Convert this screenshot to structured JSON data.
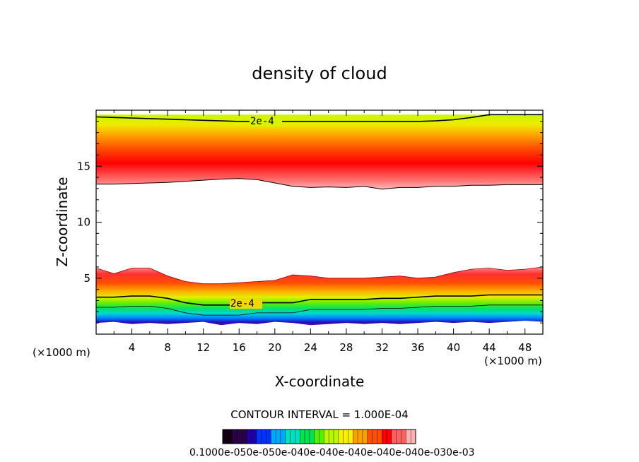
{
  "chart_data": {
    "type": "heatmap",
    "title": "density of cloud",
    "xlabel": "X-coordinate",
    "ylabel": "Z-coordinate",
    "x_unit": "(×1000 m)",
    "z_unit": "(×1000 m)",
    "xlim": [
      0,
      50
    ],
    "ylim": [
      0,
      20
    ],
    "x_ticks": [
      4,
      8,
      12,
      16,
      20,
      24,
      28,
      32,
      36,
      40,
      44,
      48
    ],
    "y_ticks": [
      5,
      10,
      15
    ],
    "contour_interval_text": "CONTOUR INTERVAL = 1.000E-04",
    "contour_label": "2e-4",
    "colorbar_labels_text": "0.1000e-050e-050e-040e-040e-040e-040e-040e-030e-03",
    "colorbar_colors": [
      "#120012",
      "#2a0048",
      "#1d00a8",
      "#0032ff",
      "#00a8ff",
      "#00e0c0",
      "#00e050",
      "#50f000",
      "#b8f800",
      "#f8f000",
      "#ffa000",
      "#ff5000",
      "#ff0000",
      "#ff6060",
      "#ffb0b0"
    ],
    "upper_layer": {
      "description_values": "density band",
      "x": [
        0,
        2,
        4,
        6,
        8,
        10,
        12,
        14,
        16,
        18,
        20,
        22,
        24,
        26,
        28,
        30,
        32,
        34,
        36,
        38,
        40,
        42,
        44,
        46,
        48,
        50
      ],
      "base_z": [
        13.4,
        13.4,
        13.45,
        13.5,
        13.55,
        13.65,
        13.75,
        13.85,
        13.9,
        13.8,
        13.5,
        13.2,
        13.1,
        13.15,
        13.1,
        13.2,
        12.95,
        13.1,
        13.1,
        13.2,
        13.2,
        13.3,
        13.3,
        13.35,
        13.35,
        13.35
      ],
      "top_z": 19.6,
      "contour_2e4_z": [
        19.4,
        19.35,
        19.3,
        19.25,
        19.2,
        19.15,
        19.1,
        19.05,
        19.0,
        19.0,
        19.0,
        19.0,
        19.0,
        19.0,
        19.0,
        19.0,
        19.0,
        19.0,
        19.0,
        19.05,
        19.15,
        19.35,
        19.6,
        19.6,
        19.6,
        19.6
      ]
    },
    "lower_layer": {
      "x": [
        0,
        2,
        4,
        6,
        8,
        10,
        12,
        14,
        16,
        18,
        20,
        22,
        24,
        26,
        28,
        30,
        32,
        34,
        36,
        38,
        40,
        42,
        44,
        46,
        48,
        50
      ],
      "top_z": [
        5.9,
        5.4,
        5.9,
        5.9,
        5.2,
        4.7,
        4.5,
        4.5,
        4.6,
        4.7,
        4.8,
        5.3,
        5.2,
        5.0,
        5.0,
        5.0,
        5.1,
        5.2,
        5.0,
        5.1,
        5.5,
        5.8,
        5.9,
        5.7,
        5.8,
        6.0
      ],
      "contour_2e4_z": [
        3.3,
        3.3,
        3.4,
        3.4,
        3.2,
        2.8,
        2.6,
        2.6,
        2.6,
        2.8,
        2.8,
        2.8,
        3.1,
        3.1,
        3.1,
        3.1,
        3.2,
        3.2,
        3.3,
        3.4,
        3.4,
        3.4,
        3.5,
        3.5,
        3.5,
        3.5
      ],
      "base_z": [
        1.0,
        1.1,
        0.9,
        1.0,
        0.9,
        1.0,
        1.1,
        0.8,
        1.0,
        0.9,
        1.1,
        1.0,
        0.8,
        0.9,
        1.0,
        0.9,
        1.0,
        0.9,
        1.0,
        1.1,
        1.0,
        1.1,
        1.0,
        1.1,
        1.2,
        1.1
      ]
    }
  }
}
